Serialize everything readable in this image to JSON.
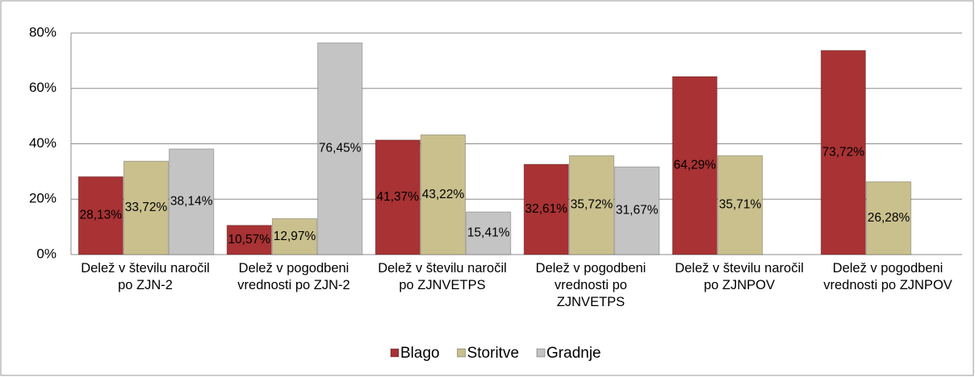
{
  "chart_data": {
    "type": "bar",
    "categories": [
      "Delež v številu naročil po ZJN-2",
      "Delež v pogodbeni vrednosti po ZJN-2",
      "Delež v številu naročil po ZJNVETPS",
      "Delež v pogodbeni vrednosti po ZJNVETPS",
      "Delež v številu naročil po ZJNPOV",
      "Delež v pogodbeni vrednosti po ZJNPOV"
    ],
    "series": [
      {
        "name": "Blago",
        "color": "#a83234",
        "values": [
          28.13,
          10.57,
          41.37,
          32.61,
          64.29,
          73.72
        ],
        "value_labels": [
          "28,13%",
          "10,57%",
          "41,37%",
          "32,61%",
          "64,29%",
          "73,72%"
        ]
      },
      {
        "name": "Storitve",
        "color": "#c9c08e",
        "values": [
          33.72,
          12.97,
          43.22,
          35.72,
          35.71,
          26.28
        ],
        "value_labels": [
          "33,72%",
          "12,97%",
          "43,22%",
          "35,72%",
          "35,71%",
          "26,28%"
        ]
      },
      {
        "name": "Gradnje",
        "color": "#c4c4c4",
        "values": [
          38.14,
          76.45,
          15.41,
          31.67,
          null,
          null
        ],
        "value_labels": [
          "38,14%",
          "76,45%",
          "15,41%",
          "31,67%",
          null,
          null
        ]
      }
    ],
    "ylim": [
      0,
      80
    ],
    "yticks": [
      {
        "value": 0,
        "label": "0%"
      },
      {
        "value": 20,
        "label": "20%"
      },
      {
        "value": 40,
        "label": "40%"
      },
      {
        "value": 60,
        "label": "60%"
      },
      {
        "value": 80,
        "label": "80%"
      }
    ],
    "grid": true,
    "legend": "bottom"
  }
}
